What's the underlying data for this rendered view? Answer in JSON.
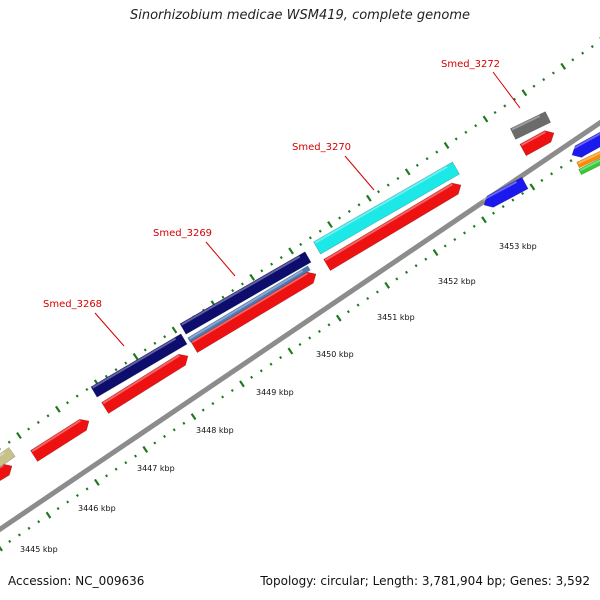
{
  "map": {
    "title": "Sinorhizobium medicae WSM419, complete genome",
    "accession_text": "Accession: NC_009636",
    "summary_text": "Topology: circular; Length: 3,781,904 bp; Genes: 3,592",
    "scale_labels": [
      {
        "text": "3445 kbp",
        "kbp": 3445
      },
      {
        "text": "3446 kbp",
        "kbp": 3446
      },
      {
        "text": "3447 kbp",
        "kbp": 3447
      },
      {
        "text": "3448 kbp",
        "kbp": 3448
      },
      {
        "text": "3449 kbp",
        "kbp": 3449
      },
      {
        "text": "3450 kbp",
        "kbp": 3450
      },
      {
        "text": "3451 kbp",
        "kbp": 3451
      },
      {
        "text": "3452 kbp",
        "kbp": 3452
      },
      {
        "text": "3453 kbp",
        "kbp": 3453
      }
    ],
    "gene_labels": [
      {
        "text": "Smed_3268"
      },
      {
        "text": "Smed_3269"
      },
      {
        "text": "Smed_3270"
      },
      {
        "text": "Smed_3272"
      }
    ],
    "colors": {
      "backbone": "#8c8c8c",
      "tick": "#1e7a1e",
      "label_red": "#d40000",
      "feature_red": "#ee1111",
      "navy": "#0d0d6e",
      "steelblue": "#4a7ab8",
      "cyan": "#1de8e8",
      "blue": "#1a1aee",
      "gray": "#6b6b6b",
      "khaki": "#c8c28a",
      "orange": "#ff8c00",
      "green": "#33cc33"
    }
  }
}
